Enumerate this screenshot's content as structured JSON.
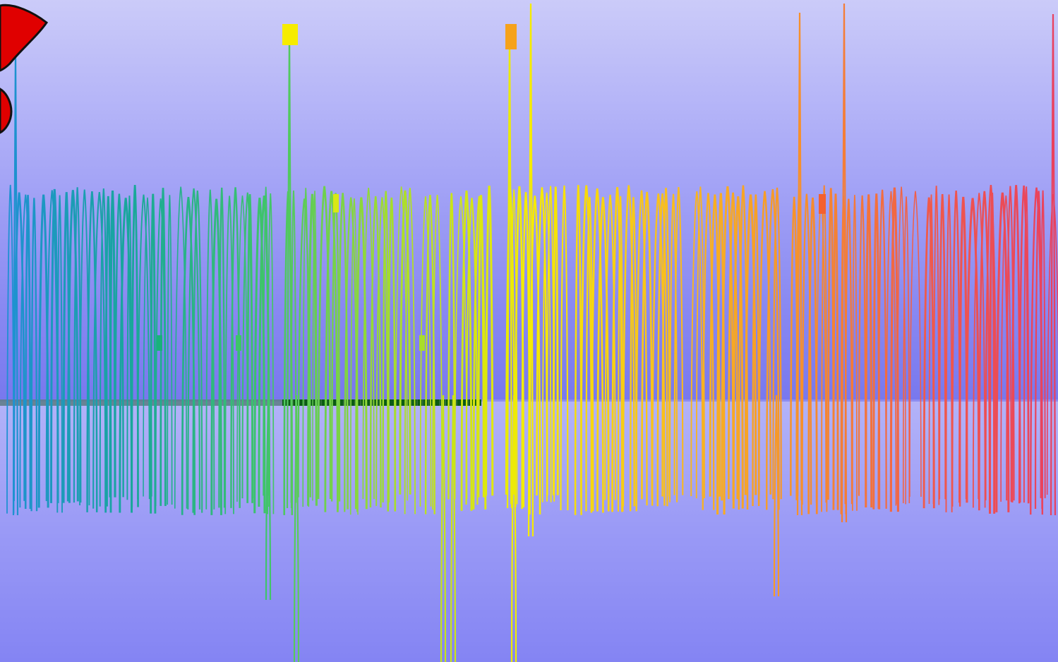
{
  "scene": {
    "sky_top_color": "#c9c9f9",
    "sky_bottom_color": "#7a7af0",
    "floor_color": "#9c9cf6",
    "progress_fill_color": "#0b5b14"
  },
  "glitch_text": {
    "gradient_colors": [
      "#1f8fd6",
      "#18a79a",
      "#3ec46a",
      "#a9de2a",
      "#f6ec00",
      "#f9c01c",
      "#f6932b",
      "#f05a4a",
      "#e9405f"
    ]
  },
  "sprite": {
    "icon": "red-flower-icon",
    "fill": "#e00000",
    "stroke": "#111111"
  }
}
